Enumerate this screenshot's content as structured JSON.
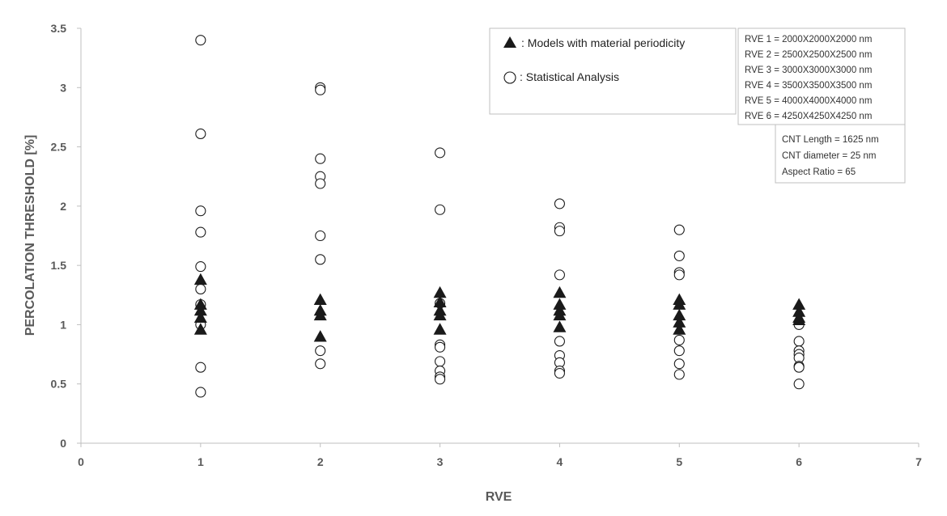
{
  "chart_data": {
    "type": "scatter",
    "title": "",
    "xlabel": "RVE",
    "ylabel": "PERCOLATION THRESHOLD [%]",
    "xlim": [
      0,
      7
    ],
    "ylim": [
      0,
      3.5
    ],
    "x_ticks": [
      "0",
      "1",
      "2",
      "3",
      "4",
      "5",
      "6",
      "7"
    ],
    "y_ticks": [
      "0",
      "0.5",
      "1",
      "1.5",
      "2",
      "2.5",
      "3",
      "3.5"
    ],
    "grid": false,
    "legend_position": "top-center",
    "series": [
      {
        "name": ": Models with material periodicity",
        "marker": "triangle",
        "color": "#1a1a1a",
        "points": [
          [
            1,
            1.38
          ],
          [
            1,
            1.17
          ],
          [
            1,
            1.12
          ],
          [
            1,
            1.06
          ],
          [
            1,
            0.96
          ],
          [
            2,
            1.21
          ],
          [
            2,
            1.12
          ],
          [
            2,
            1.08
          ],
          [
            2,
            0.9
          ],
          [
            3,
            1.27
          ],
          [
            3,
            1.19
          ],
          [
            3,
            1.12
          ],
          [
            3,
            1.08
          ],
          [
            3,
            0.96
          ],
          [
            4,
            1.27
          ],
          [
            4,
            1.17
          ],
          [
            4,
            1.12
          ],
          [
            4,
            1.08
          ],
          [
            4,
            0.98
          ],
          [
            5,
            1.21
          ],
          [
            5,
            1.17
          ],
          [
            5,
            1.08
          ],
          [
            5,
            1.02
          ],
          [
            5,
            0.96
          ],
          [
            6,
            1.17
          ],
          [
            6,
            1.11
          ],
          [
            6,
            1.06
          ],
          [
            6,
            1.04
          ]
        ]
      },
      {
        "name": ": Statistical Analysis",
        "marker": "circle",
        "color": "#1a1a1a",
        "points": [
          [
            1,
            3.4
          ],
          [
            1,
            2.61
          ],
          [
            1,
            1.96
          ],
          [
            1,
            1.78
          ],
          [
            1,
            1.49
          ],
          [
            1,
            1.3
          ],
          [
            1,
            1.17
          ],
          [
            1,
            1.0
          ],
          [
            1,
            0.64
          ],
          [
            1,
            0.43
          ],
          [
            2,
            3.0
          ],
          [
            2,
            2.98
          ],
          [
            2,
            2.4
          ],
          [
            2,
            2.25
          ],
          [
            2,
            2.19
          ],
          [
            2,
            1.75
          ],
          [
            2,
            1.55
          ],
          [
            2,
            0.78
          ],
          [
            2,
            0.67
          ],
          [
            3,
            2.45
          ],
          [
            3,
            1.97
          ],
          [
            3,
            1.18
          ],
          [
            3,
            0.83
          ],
          [
            3,
            0.81
          ],
          [
            3,
            0.69
          ],
          [
            3,
            0.61
          ],
          [
            3,
            0.56
          ],
          [
            3,
            0.54
          ],
          [
            4,
            2.02
          ],
          [
            4,
            1.82
          ],
          [
            4,
            1.79
          ],
          [
            4,
            1.42
          ],
          [
            4,
            0.86
          ],
          [
            4,
            0.74
          ],
          [
            4,
            0.68
          ],
          [
            4,
            0.61
          ],
          [
            4,
            0.59
          ],
          [
            5,
            1.8
          ],
          [
            5,
            1.58
          ],
          [
            5,
            1.44
          ],
          [
            5,
            1.42
          ],
          [
            5,
            0.87
          ],
          [
            5,
            0.78
          ],
          [
            5,
            0.67
          ],
          [
            5,
            0.58
          ],
          [
            6,
            1.0
          ],
          [
            6,
            0.86
          ],
          [
            6,
            0.78
          ],
          [
            6,
            0.75
          ],
          [
            6,
            0.72
          ],
          [
            6,
            0.65
          ],
          [
            6,
            0.64
          ],
          [
            6,
            0.5
          ]
        ]
      }
    ],
    "annotations": {
      "rve_sizes": [
        "RVE 1 = 2000X2000X2000  nm",
        "RVE 2 = 2500X2500X2500  nm",
        "RVE 3 = 3000X3000X3000  nm",
        "RVE 4 = 3500X3500X3500  nm",
        "RVE 5 = 4000X4000X4000  nm",
        "RVE 6 = 4250X4250X4250  nm"
      ],
      "cnt_properties": [
        "CNT Length = 1625  nm",
        "CNT diameter = 25  nm",
        "Aspect Ratio = 65"
      ]
    }
  }
}
